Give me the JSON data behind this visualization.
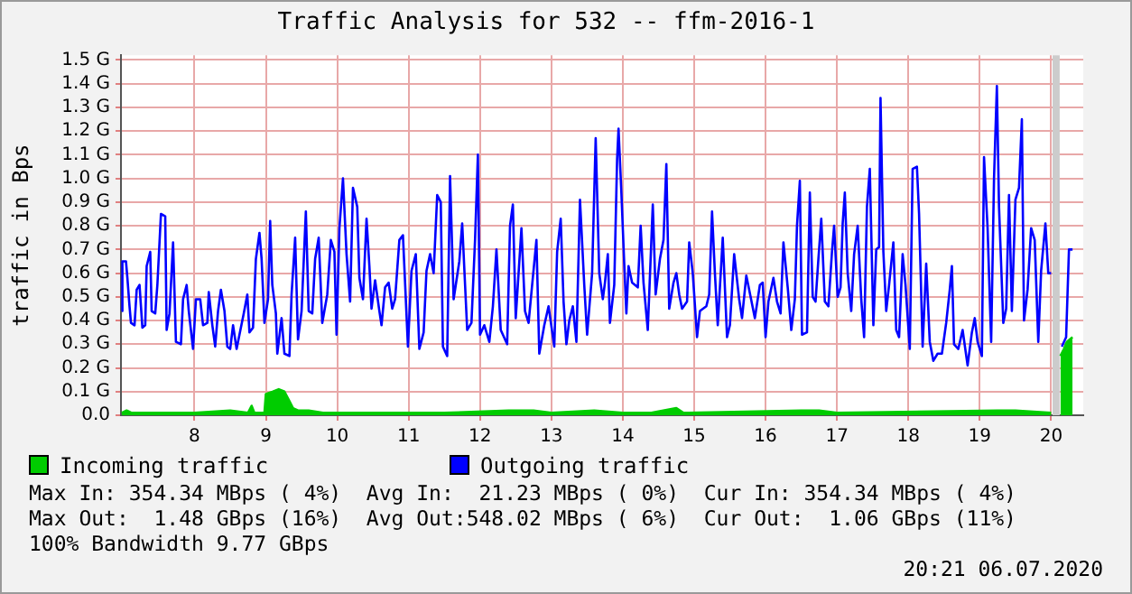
{
  "chart_data": {
    "type": "line",
    "title": "Traffic Analysis for 532 -- ffm-2016-1",
    "ylabel": "traffic in Bps",
    "xlim": [
      6.97,
      20.45
    ],
    "xticks": [
      8,
      9,
      10,
      11,
      12,
      13,
      14,
      15,
      16,
      17,
      18,
      19,
      20
    ],
    "ylim": [
      0,
      1.52
    ],
    "yticks": [
      {
        "value": 0,
        "label": "0.0"
      },
      {
        "value": 0.1,
        "label": "0.1 G"
      },
      {
        "value": 0.2,
        "label": "0.2 G"
      },
      {
        "value": 0.3,
        "label": "0.3 G"
      },
      {
        "value": 0.4,
        "label": "0.4 G"
      },
      {
        "value": 0.5,
        "label": "0.5 G"
      },
      {
        "value": 0.6,
        "label": "0.6 G"
      },
      {
        "value": 0.7,
        "label": "0.7 G"
      },
      {
        "value": 0.8,
        "label": "0.8 G"
      },
      {
        "value": 0.9,
        "label": "0.9 G"
      },
      {
        "value": 1.0,
        "label": "1.0 G"
      },
      {
        "value": 1.1,
        "label": "1.1 G"
      },
      {
        "value": 1.2,
        "label": "1.2 G"
      },
      {
        "value": 1.3,
        "label": "1.3 G"
      },
      {
        "value": 1.4,
        "label": "1.4 G"
      },
      {
        "value": 1.5,
        "label": "1.5 G"
      }
    ],
    "grid": true,
    "legend": "bottom",
    "marker": "none",
    "line_style": "solid",
    "bands": [
      {
        "axis": "x",
        "from": 20.02,
        "to": 20.12,
        "color": "#cccccc"
      }
    ],
    "series": [
      {
        "name": "Incoming traffic",
        "type": "area",
        "color": "#00cc00",
        "x": [
          6.98,
          7.05,
          7.12,
          8.0,
          8.5,
          8.75,
          8.8,
          8.84,
          8.98,
          9.0,
          9.1,
          9.18,
          9.26,
          9.33,
          9.38,
          9.45,
          9.6,
          9.8,
          11.5,
          12.4,
          12.75,
          13.0,
          13.6,
          14.0,
          14.4,
          14.75,
          14.85,
          16.5,
          16.75,
          17.0,
          19.25,
          19.5,
          20.0,
          20.06,
          20.13,
          20.18,
          20.22,
          20.3
        ],
        "values": [
          0.01,
          0.02,
          0.01,
          0.01,
          0.02,
          0.01,
          0.04,
          0.01,
          0.01,
          0.09,
          0.1,
          0.11,
          0.1,
          0.06,
          0.03,
          0.02,
          0.02,
          0.01,
          0.01,
          0.02,
          0.02,
          0.01,
          0.02,
          0.01,
          0.01,
          0.03,
          0.01,
          0.02,
          0.02,
          0.01,
          0.02,
          0.02,
          0.01,
          null,
          0.25,
          0.28,
          0.31,
          0.33
        ]
      },
      {
        "name": "Outgoing traffic",
        "type": "line",
        "color": "#0000ff",
        "x": [
          6.98,
          6.99,
          7.04,
          7.06,
          7.09,
          7.11,
          7.16,
          7.19,
          7.23,
          7.27,
          7.31,
          7.33,
          7.38,
          7.4,
          7.45,
          7.48,
          7.53,
          7.59,
          7.61,
          7.65,
          7.7,
          7.74,
          7.81,
          7.84,
          7.89,
          7.92,
          7.98,
          8.02,
          8.08,
          8.12,
          8.18,
          8.2,
          8.25,
          8.29,
          8.33,
          8.37,
          8.42,
          8.46,
          8.5,
          8.54,
          8.59,
          8.63,
          8.69,
          8.74,
          8.77,
          8.82,
          8.86,
          8.91,
          8.94,
          8.98,
          9.03,
          9.06,
          9.09,
          9.14,
          9.16,
          9.22,
          9.26,
          9.33,
          9.36,
          9.41,
          9.45,
          9.5,
          9.56,
          9.6,
          9.65,
          9.69,
          9.74,
          9.79,
          9.86,
          9.91,
          9.96,
          9.99,
          10.03,
          10.08,
          10.13,
          10.18,
          10.22,
          10.28,
          10.31,
          10.36,
          10.41,
          10.45,
          10.48,
          10.53,
          10.59,
          10.62,
          10.67,
          10.72,
          10.77,
          10.81,
          10.87,
          10.92,
          10.99,
          11.04,
          11.1,
          11.15,
          11.21,
          11.25,
          11.3,
          11.35,
          11.4,
          11.45,
          11.48,
          11.54,
          11.58,
          11.63,
          11.71,
          11.75,
          11.82,
          11.88,
          11.93,
          11.97,
          12.0,
          12.06,
          12.13,
          12.18,
          12.23,
          12.29,
          12.38,
          12.42,
          12.46,
          12.5,
          12.58,
          12.63,
          12.68,
          12.73,
          12.79,
          12.83,
          12.9,
          12.96,
          13.04,
          13.08,
          13.13,
          13.17,
          13.21,
          13.25,
          13.3,
          13.35,
          13.4,
          13.46,
          13.5,
          13.57,
          13.62,
          13.67,
          13.72,
          13.75,
          13.79,
          13.82,
          13.88,
          13.92,
          13.94,
          13.98,
          14.02,
          14.05,
          14.08,
          14.13,
          14.21,
          14.25,
          14.29,
          14.35,
          14.42,
          14.46,
          14.52,
          14.57,
          14.61,
          14.65,
          14.71,
          14.75,
          14.79,
          14.83,
          14.9,
          14.93,
          14.98,
          15.04,
          15.08,
          15.17,
          15.21,
          15.25,
          15.29,
          15.33,
          15.4,
          15.46,
          15.5,
          15.56,
          15.63,
          15.67,
          15.73,
          15.79,
          15.85,
          15.92,
          15.96,
          16.0,
          16.04,
          16.11,
          16.16,
          16.21,
          16.25,
          16.31,
          16.36,
          16.41,
          16.44,
          16.48,
          16.51,
          16.58,
          16.62,
          16.66,
          16.7,
          16.74,
          16.78,
          16.83,
          16.88,
          16.93,
          16.96,
          17.01,
          17.05,
          17.08,
          17.11,
          17.15,
          17.2,
          17.24,
          17.29,
          17.34,
          17.38,
          17.42,
          17.46,
          17.51,
          17.55,
          17.59,
          17.61,
          17.65,
          17.69,
          17.73,
          17.79,
          17.83,
          17.87,
          17.92,
          17.96,
          18.02,
          18.06,
          18.12,
          18.15,
          18.2,
          18.25,
          18.3,
          18.35,
          18.41,
          18.47,
          18.53,
          18.58,
          18.61,
          18.64,
          18.7,
          18.76,
          18.83,
          18.89,
          18.93,
          18.97,
          19.03,
          19.06,
          19.11,
          19.16,
          19.2,
          19.24,
          19.27,
          19.33,
          19.37,
          19.41,
          19.45,
          19.5,
          19.55,
          19.59,
          19.62,
          19.67,
          19.72,
          19.77,
          19.82,
          19.86,
          19.92,
          19.96,
          20.0,
          20.06,
          20.15,
          20.21,
          20.25,
          20.3
        ],
        "values": [
          0.44,
          0.65,
          0.65,
          0.58,
          0.46,
          0.39,
          0.38,
          0.53,
          0.55,
          0.37,
          0.38,
          0.63,
          0.69,
          0.44,
          0.43,
          0.55,
          0.85,
          0.84,
          0.36,
          0.43,
          0.73,
          0.31,
          0.3,
          0.49,
          0.55,
          0.44,
          0.28,
          0.49,
          0.49,
          0.38,
          0.39,
          0.52,
          0.38,
          0.29,
          0.44,
          0.53,
          0.44,
          0.29,
          0.28,
          0.38,
          0.28,
          0.34,
          0.43,
          0.51,
          0.35,
          0.37,
          0.66,
          0.77,
          0.66,
          0.39,
          0.49,
          0.82,
          0.55,
          0.43,
          0.26,
          0.41,
          0.26,
          0.25,
          0.51,
          0.75,
          0.32,
          0.44,
          0.86,
          0.44,
          0.43,
          0.66,
          0.75,
          0.39,
          0.51,
          0.74,
          0.69,
          0.34,
          0.79,
          1.0,
          0.68,
          0.48,
          0.96,
          0.88,
          0.58,
          0.49,
          0.83,
          0.63,
          0.45,
          0.57,
          0.44,
          0.38,
          0.54,
          0.56,
          0.45,
          0.49,
          0.74,
          0.76,
          0.29,
          0.61,
          0.68,
          0.28,
          0.35,
          0.61,
          0.68,
          0.6,
          0.93,
          0.9,
          0.29,
          0.25,
          1.01,
          0.49,
          0.65,
          0.81,
          0.36,
          0.39,
          0.74,
          1.1,
          0.34,
          0.38,
          0.31,
          0.46,
          0.7,
          0.36,
          0.3,
          0.8,
          0.89,
          0.41,
          0.79,
          0.44,
          0.39,
          0.55,
          0.74,
          0.26,
          0.38,
          0.46,
          0.29,
          0.69,
          0.83,
          0.48,
          0.3,
          0.4,
          0.46,
          0.31,
          0.91,
          0.55,
          0.34,
          0.6,
          1.17,
          0.6,
          0.49,
          0.56,
          0.68,
          0.39,
          0.55,
          1.08,
          1.21,
          0.94,
          0.64,
          0.43,
          0.63,
          0.56,
          0.54,
          0.8,
          0.56,
          0.36,
          0.89,
          0.51,
          0.66,
          0.74,
          1.06,
          0.45,
          0.56,
          0.6,
          0.51,
          0.45,
          0.48,
          0.73,
          0.6,
          0.33,
          0.44,
          0.46,
          0.51,
          0.86,
          0.6,
          0.38,
          0.75,
          0.33,
          0.38,
          0.68,
          0.49,
          0.41,
          0.59,
          0.5,
          0.41,
          0.55,
          0.56,
          0.33,
          0.48,
          0.58,
          0.48,
          0.43,
          0.73,
          0.54,
          0.36,
          0.49,
          0.8,
          0.99,
          0.34,
          0.35,
          0.94,
          0.5,
          0.48,
          0.66,
          0.83,
          0.48,
          0.46,
          0.69,
          0.8,
          0.5,
          0.54,
          0.81,
          0.94,
          0.6,
          0.44,
          0.68,
          0.8,
          0.49,
          0.33,
          0.88,
          1.04,
          0.38,
          0.7,
          0.71,
          1.34,
          0.69,
          0.44,
          0.55,
          0.73,
          0.36,
          0.33,
          0.68,
          0.55,
          0.28,
          1.04,
          1.05,
          0.85,
          0.29,
          0.64,
          0.31,
          0.23,
          0.26,
          0.26,
          0.39,
          0.53,
          0.63,
          0.3,
          0.28,
          0.36,
          0.21,
          0.35,
          0.41,
          0.31,
          0.25,
          1.09,
          0.79,
          0.31,
          1.0,
          1.39,
          0.88,
          0.39,
          0.45,
          0.93,
          0.44,
          0.91,
          0.96,
          1.25,
          0.4,
          0.53,
          0.79,
          0.74,
          0.31,
          0.61,
          0.81,
          0.6,
          0.6,
          null,
          0.29,
          0.33,
          0.7,
          0.7
        ]
      }
    ],
    "annotations": [
      "Max In: 354.34 MBps ( 4%)  Avg In:  21.23 MBps ( 0%)  Cur In: 354.34 MBps ( 4%)",
      "Max Out:  1.48 GBps (16%)  Avg Out:548.02 MBps ( 6%)  Cur Out:  1.06 GBps (11%)",
      "100% Bandwidth 9.77 GBps",
      "20:21 06.07.2020"
    ]
  }
}
